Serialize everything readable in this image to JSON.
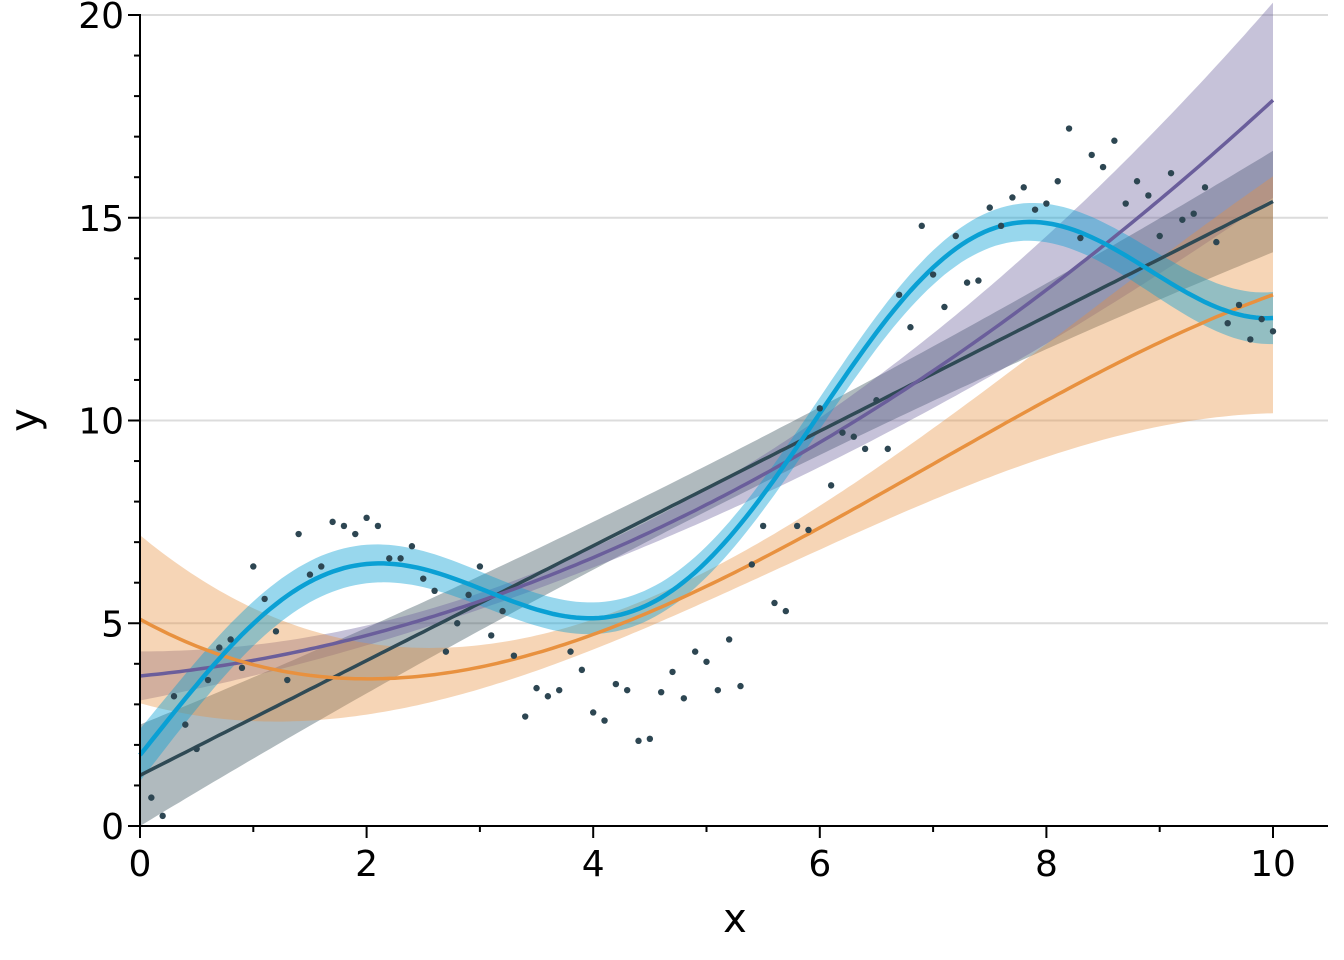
{
  "chart_data": {
    "type": "scatter",
    "title": "",
    "xlabel": "x",
    "ylabel": "y",
    "xlim": [
      0,
      10.5
    ],
    "ylim": [
      0,
      20
    ],
    "xticks": [
      0,
      2,
      4,
      6,
      8,
      10
    ],
    "yticks": [
      0,
      5,
      10,
      15,
      20
    ],
    "xtick_labels": [
      "0",
      "2",
      "4",
      "6",
      "8",
      "10"
    ],
    "ytick_labels": [
      "0",
      "5",
      "10",
      "15",
      "20"
    ],
    "grid": "horizontal",
    "legend": "none",
    "colors": {
      "points": "#2d4652",
      "linear": "#2f4a55",
      "quadratic": "#6a5e9b",
      "cubic": "#e8913f",
      "sine": "#0aa0d4"
    },
    "points": {
      "x": [
        0.1,
        0.2,
        0.3,
        0.4,
        0.5,
        0.6,
        0.7,
        0.8,
        0.9,
        1.0,
        1.1,
        1.2,
        1.3,
        1.4,
        1.5,
        1.6,
        1.7,
        1.8,
        1.9,
        2.0,
        2.1,
        2.2,
        2.3,
        2.4,
        2.5,
        2.6,
        2.7,
        2.8,
        2.9,
        3.0,
        3.1,
        3.2,
        3.3,
        3.4,
        3.5,
        3.6,
        3.7,
        3.8,
        3.9,
        4.0,
        4.1,
        4.2,
        4.3,
        4.4,
        4.5,
        4.6,
        4.7,
        4.8,
        4.9,
        5.0,
        5.1,
        5.2,
        5.3,
        5.4,
        5.5,
        5.6,
        5.7,
        5.8,
        5.9,
        6.0,
        6.1,
        6.2,
        6.3,
        6.4,
        6.5,
        6.6,
        6.7,
        6.8,
        6.9,
        7.0,
        7.1,
        7.2,
        7.3,
        7.4,
        7.5,
        7.6,
        7.7,
        7.8,
        7.9,
        8.0,
        8.1,
        8.2,
        8.3,
        8.4,
        8.5,
        8.6,
        8.7,
        8.8,
        8.9,
        9.0,
        9.1,
        9.2,
        9.3,
        9.4,
        9.5,
        9.6,
        9.7,
        9.8,
        9.9,
        10.0
      ],
      "y": [
        0.7,
        0.25,
        3.2,
        2.5,
        1.9,
        3.6,
        4.4,
        4.6,
        3.9,
        6.4,
        5.6,
        4.8,
        3.6,
        7.2,
        6.2,
        6.4,
        7.5,
        7.4,
        7.2,
        7.6,
        7.4,
        6.6,
        6.6,
        6.9,
        6.1,
        5.8,
        4.3,
        5.0,
        5.7,
        6.4,
        4.7,
        5.3,
        4.2,
        2.7,
        3.4,
        3.2,
        3.35,
        4.3,
        3.85,
        2.8,
        2.6,
        3.5,
        3.35,
        2.1,
        2.15,
        3.3,
        3.8,
        3.15,
        4.3,
        4.05,
        3.35,
        4.6,
        3.45,
        6.45,
        7.4,
        5.5,
        5.3,
        7.4,
        7.3,
        10.3,
        8.4,
        9.7,
        9.6,
        9.3,
        10.5,
        9.3,
        13.1,
        12.3,
        14.8,
        13.6,
        12.8,
        14.55,
        13.4,
        13.45,
        15.25,
        14.8,
        15.5,
        15.75,
        15.2,
        15.35,
        15.9,
        17.2,
        14.5,
        16.55,
        16.25,
        16.9,
        15.35,
        15.9,
        15.55,
        14.55,
        16.1,
        14.95,
        15.1,
        15.75,
        14.4,
        12.4,
        12.85,
        12.0,
        12.5,
        12.2
      ]
    }
  }
}
